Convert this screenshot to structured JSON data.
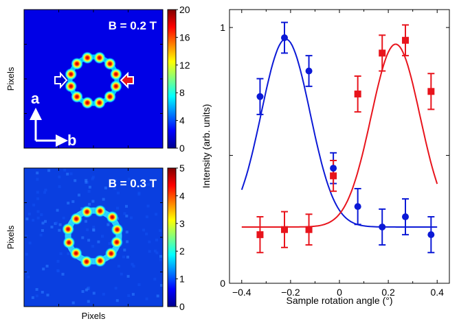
{
  "chart_data": [
    {
      "type": "heatmap",
      "title": "B = 0.2 T",
      "ylabel": "Pixels",
      "xlabel": "",
      "colorbar": {
        "min": 0,
        "max": 20,
        "ticks": [
          "0",
          "4",
          "8",
          "12",
          "16",
          "20"
        ]
      },
      "ring": {
        "spots": 12,
        "spot_peak": 20,
        "background": 1
      },
      "annotations": {
        "axis_a": "a",
        "axis_b": "b",
        "left_arrow": "white-outlined-arrow",
        "right_arrow": "red-arrow"
      }
    },
    {
      "type": "heatmap",
      "title": "B = 0.3 T",
      "ylabel": "Pixels",
      "xlabel": "Pixels",
      "colorbar": {
        "min": 0,
        "max": 5,
        "ticks": [
          "0",
          "1",
          "2",
          "3",
          "4",
          "5"
        ]
      },
      "ring": {
        "spots": 12,
        "spot_peak": 5,
        "background": 0.6
      }
    },
    {
      "type": "scatter",
      "xlabel": "Sample rotation angle (°)",
      "ylabel": "Intensity (arb. units)",
      "xlim": [
        -0.45,
        0.45
      ],
      "ylim": [
        0,
        1.07
      ],
      "xticks": [
        "-0.4",
        "-0.2",
        "0",
        "0.2",
        "0.4"
      ],
      "yticks": [
        "0",
        "",
        "1"
      ],
      "ytick_values": [
        0,
        0.5,
        1
      ],
      "colors": {
        "blue": "#0b19d6",
        "red": "#e8141c"
      },
      "series": [
        {
          "color": "blue",
          "marker": "circle",
          "x": [
            -0.325,
            -0.225,
            -0.125,
            -0.025,
            0.075,
            0.175,
            0.27,
            0.375
          ],
          "y": [
            0.73,
            0.96,
            0.83,
            0.45,
            0.3,
            0.22,
            0.26,
            0.19
          ],
          "err": [
            0.07,
            0.06,
            0.06,
            0.06,
            0.07,
            0.07,
            0.07,
            0.07
          ],
          "fit": {
            "base": 0.22,
            "amp": 0.735,
            "center": -0.22,
            "sigma": 0.1
          }
        },
        {
          "color": "red",
          "marker": "square",
          "x": [
            -0.325,
            -0.225,
            -0.125,
            -0.025,
            0.075,
            0.175,
            0.27,
            0.375
          ],
          "y": [
            0.19,
            0.21,
            0.21,
            0.42,
            0.74,
            0.9,
            0.95,
            0.75
          ],
          "err": [
            0.07,
            0.07,
            0.06,
            0.06,
            0.07,
            0.07,
            0.06,
            0.07
          ],
          "fit": {
            "base": 0.22,
            "amp": 0.715,
            "center": 0.23,
            "sigma": 0.1
          }
        }
      ]
    }
  ]
}
